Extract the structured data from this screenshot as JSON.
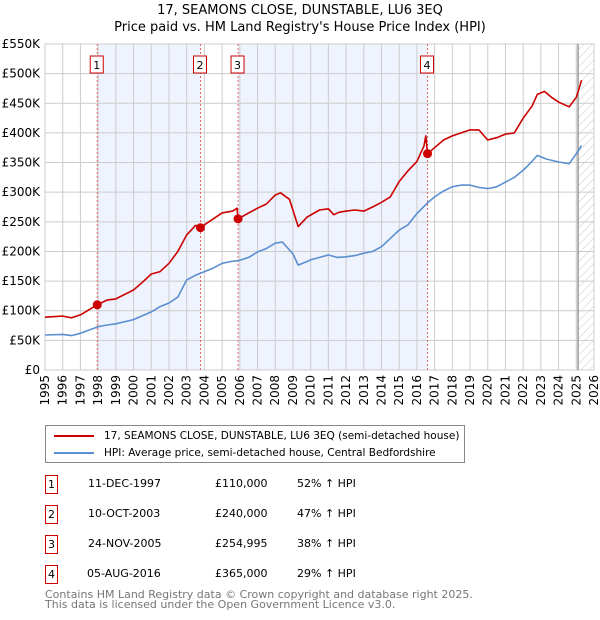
{
  "title": "17, SEAMONS CLOSE, DUNSTABLE, LU6 3EQ",
  "subtitle": "Price paid vs. HM Land Registry's House Price Index (HPI)",
  "colors": {
    "property": "#cc0000",
    "hpi": "#5b8fd0",
    "shade": "#eef3fd",
    "grid": "#cccccc"
  },
  "chart_data": {
    "type": "line",
    "title": "17, SEAMONS CLOSE, DUNSTABLE, LU6 3EQ — Price paid vs. HM Land Registry's House Price Index (HPI)",
    "xlim": [
      1995,
      2026
    ],
    "ylim": [
      0,
      550000
    ],
    "yticks": [
      {
        "v": 0,
        "l": "£0"
      },
      {
        "v": 50000,
        "l": "£50K"
      },
      {
        "v": 100000,
        "l": "£100K"
      },
      {
        "v": 150000,
        "l": "£150K"
      },
      {
        "v": 200000,
        "l": "£200K"
      },
      {
        "v": 250000,
        "l": "£250K"
      },
      {
        "v": 300000,
        "l": "£300K"
      },
      {
        "v": 350000,
        "l": "£350K"
      },
      {
        "v": 400000,
        "l": "£400K"
      },
      {
        "v": 450000,
        "l": "£450K"
      },
      {
        "v": 500000,
        "l": "£500K"
      },
      {
        "v": 550000,
        "l": "£550K"
      }
    ],
    "xticks": [
      "1995",
      "1996",
      "1997",
      "1998",
      "1999",
      "2000",
      "2001",
      "2002",
      "2003",
      "2004",
      "2005",
      "2006",
      "2007",
      "2008",
      "2009",
      "2010",
      "2011",
      "2012",
      "2013",
      "2014",
      "2015",
      "2016",
      "2017",
      "2018",
      "2019",
      "2020",
      "2021",
      "2022",
      "2023",
      "2024",
      "2025",
      "2026"
    ],
    "grid": true,
    "forecast_start": 2025.1,
    "series": [
      {
        "name": "17, SEAMONS CLOSE, DUNSTABLE, LU6 3EQ (semi-detached house)",
        "color": "#cc0000",
        "x": [
          1995,
          1996,
          1996.5,
          1997,
          1997.95,
          1998.5,
          1999,
          2000,
          2000.5,
          2001,
          2001.5,
          2002,
          2002.5,
          2003,
          2003.5,
          2003.78,
          2004,
          2004.5,
          2005,
          2005.6,
          2005.85,
          2005.9,
          2006.5,
          2007,
          2007.5,
          2008,
          2008.3,
          2008.8,
          2009,
          2009.3,
          2009.8,
          2010.5,
          2011,
          2011.3,
          2011.6,
          2012,
          2012.5,
          2013,
          2013.5,
          2014,
          2014.5,
          2015,
          2015.5,
          2016,
          2016.4,
          2016.5,
          2016.6,
          2017,
          2017.5,
          2018,
          2018.5,
          2019,
          2019.5,
          2020,
          2020.5,
          2021,
          2021.5,
          2022,
          2022.5,
          2022.8,
          2023.2,
          2023.6,
          2024,
          2024.6,
          2025,
          2025.3
        ],
        "y": [
          89000,
          91000,
          88000,
          93000,
          110000,
          118000,
          120000,
          135000,
          148000,
          162000,
          166000,
          180000,
          200000,
          228000,
          244000,
          240000,
          245000,
          255000,
          265000,
          268000,
          273000,
          255000,
          265000,
          273000,
          280000,
          295000,
          299000,
          288000,
          270000,
          242000,
          258000,
          270000,
          272000,
          262000,
          266000,
          268000,
          270000,
          268000,
          275000,
          283000,
          292000,
          318000,
          336000,
          352000,
          378000,
          395000,
          365000,
          375000,
          388000,
          395000,
          400000,
          405000,
          405000,
          388000,
          392000,
          398000,
          400000,
          425000,
          445000,
          465000,
          470000,
          460000,
          452000,
          444000,
          460000,
          489000
        ]
      },
      {
        "name": "HPI: Average price, semi-detached house, Central Bedfordshire",
        "color": "#5b8fd0",
        "x": [
          1995,
          1996,
          1996.5,
          1997,
          1998,
          1998.5,
          1999,
          2000,
          2001,
          2001.5,
          2002,
          2002.5,
          2003,
          2003.5,
          2004,
          2004.5,
          2005,
          2005.5,
          2006,
          2006.5,
          2007,
          2007.5,
          2008,
          2008.4,
          2009,
          2009.3,
          2009.8,
          2010,
          2011,
          2011.5,
          2012,
          2012.5,
          2013,
          2013.5,
          2014,
          2014.5,
          2015,
          2015.5,
          2016,
          2016.6,
          2017,
          2017.5,
          2018,
          2018.5,
          2019,
          2019.5,
          2020,
          2020.5,
          2021,
          2021.5,
          2022,
          2022.5,
          2022.8,
          2023.3,
          2024,
          2024.6,
          2025,
          2025.3
        ],
        "y": [
          59000,
          60000,
          58000,
          62000,
          73000,
          76000,
          78000,
          85000,
          98000,
          107000,
          113000,
          123000,
          152000,
          160000,
          166000,
          172000,
          180000,
          183000,
          185000,
          190000,
          199000,
          205000,
          214000,
          216000,
          196000,
          177000,
          183000,
          186000,
          194000,
          190000,
          191000,
          193000,
          197000,
          200000,
          208000,
          222000,
          236000,
          245000,
          264000,
          282000,
          292000,
          302000,
          309000,
          312000,
          312000,
          308000,
          306000,
          309000,
          317000,
          325000,
          337000,
          352000,
          362000,
          356000,
          351000,
          348000,
          365000,
          379000
        ]
      }
    ],
    "sales": [
      {
        "n": "1",
        "x": 1997.95,
        "y": 110000
      },
      {
        "n": "2",
        "x": 2003.78,
        "y": 240000
      },
      {
        "n": "3",
        "x": 2005.9,
        "y": 254995
      },
      {
        "n": "4",
        "x": 2016.6,
        "y": 365000
      }
    ]
  },
  "legend": {
    "property": "17, SEAMONS CLOSE, DUNSTABLE, LU6 3EQ (semi-detached house)",
    "hpi": "HPI: Average price, semi-detached house, Central Bedfordshire"
  },
  "transactions": [
    {
      "n": "1",
      "date": "11-DEC-1997",
      "price": "£110,000",
      "hpi": "52% ↑ HPI"
    },
    {
      "n": "2",
      "date": "10-OCT-2003",
      "price": "£240,000",
      "hpi": "47% ↑ HPI"
    },
    {
      "n": "3",
      "date": "24-NOV-2005",
      "price": "£254,995",
      "hpi": "38% ↑ HPI"
    },
    {
      "n": "4",
      "date": "05-AUG-2016",
      "price": "£365,000",
      "hpi": "29% ↑ HPI"
    }
  ],
  "footer": {
    "line1": "Contains HM Land Registry data © Crown copyright and database right 2025.",
    "line2": "This data is licensed under the Open Government Licence v3.0."
  }
}
